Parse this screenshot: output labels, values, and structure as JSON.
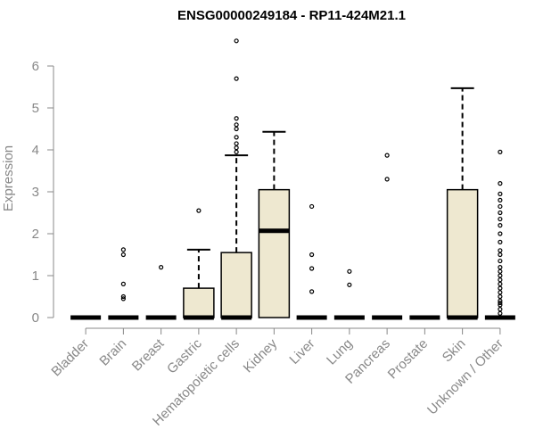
{
  "chart_data": {
    "type": "box",
    "title": "ENSG00000249184 - RP11-424M21.1",
    "ylabel": "Expression",
    "xlabel": "",
    "ylim": [
      0,
      6.7
    ],
    "yticks": [
      0,
      1,
      2,
      3,
      4,
      5,
      6
    ],
    "grid": false,
    "colors": {
      "box_fill": "#EEE8D0",
      "stroke": "#000000",
      "axis": "#888888",
      "title": "#000000"
    },
    "categories": [
      "Bladder",
      "Brain",
      "Breast",
      "Gastric",
      "Hematopoietic cells",
      "Kidney",
      "Liver",
      "Lung",
      "Pancreas",
      "Prostate",
      "Skin",
      "Unknown / Other"
    ],
    "boxes": [
      {
        "category": "Bladder",
        "q1": 0,
        "median": 0,
        "q3": 0,
        "whisker_low": 0,
        "whisker_high": 0,
        "outliers": []
      },
      {
        "category": "Brain",
        "q1": 0,
        "median": 0,
        "q3": 0,
        "whisker_low": 0,
        "whisker_high": 0,
        "outliers": [
          0.45,
          0.5,
          0.8,
          1.5,
          1.62
        ]
      },
      {
        "category": "Breast",
        "q1": 0,
        "median": 0,
        "q3": 0,
        "whisker_low": 0,
        "whisker_high": 0,
        "outliers": [
          1.2
        ]
      },
      {
        "category": "Gastric",
        "q1": 0,
        "median": 0,
        "q3": 0.7,
        "whisker_low": 0,
        "whisker_high": 1.62,
        "outliers": [
          2.55
        ]
      },
      {
        "category": "Hematopoietic cells",
        "q1": 0,
        "median": 0,
        "q3": 1.55,
        "whisker_low": 0,
        "whisker_high": 3.87,
        "outliers": [
          3.95,
          4.05,
          4.15,
          4.3,
          4.5,
          4.6,
          4.75,
          5.7,
          6.6
        ]
      },
      {
        "category": "Kidney",
        "q1": 0,
        "median": 2.07,
        "q3": 3.05,
        "whisker_low": 0,
        "whisker_high": 4.43,
        "outliers": []
      },
      {
        "category": "Liver",
        "q1": 0,
        "median": 0,
        "q3": 0,
        "whisker_low": 0,
        "whisker_high": 0,
        "outliers": [
          0.62,
          1.17,
          1.5,
          2.65
        ]
      },
      {
        "category": "Lung",
        "q1": 0,
        "median": 0,
        "q3": 0,
        "whisker_low": 0,
        "whisker_high": 0,
        "outliers": [
          0.78,
          1.1
        ]
      },
      {
        "category": "Pancreas",
        "q1": 0,
        "median": 0,
        "q3": 0,
        "whisker_low": 0,
        "whisker_high": 0,
        "outliers": [
          3.3,
          3.87
        ]
      },
      {
        "category": "Prostate",
        "q1": 0,
        "median": 0,
        "q3": 0,
        "whisker_low": 0,
        "whisker_high": 0,
        "outliers": []
      },
      {
        "category": "Skin",
        "q1": 0,
        "median": 0,
        "q3": 3.05,
        "whisker_low": 0,
        "whisker_high": 5.47,
        "outliers": []
      },
      {
        "category": "Unknown / Other",
        "q1": 0,
        "median": 0,
        "q3": 0,
        "whisker_low": 0,
        "whisker_high": 0,
        "outliers": [
          0.1,
          0.2,
          0.3,
          0.35,
          0.4,
          0.5,
          0.6,
          0.7,
          0.8,
          0.9,
          1.0,
          1.1,
          1.2,
          1.35,
          1.5,
          1.6,
          1.8,
          2.0,
          2.2,
          2.35,
          2.5,
          2.65,
          2.8,
          2.95,
          3.2,
          3.95
        ]
      }
    ]
  }
}
